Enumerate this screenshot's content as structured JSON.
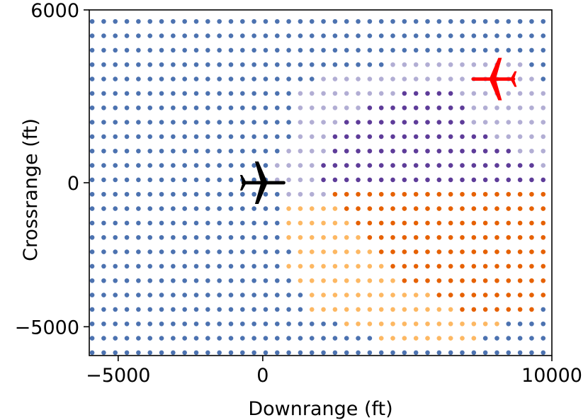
{
  "chart_data": {
    "type": "scatter",
    "title": "",
    "xlabel": "Downrange (ft)",
    "ylabel": "Crossrange (ft)",
    "xlim": [
      -6000,
      10000
    ],
    "ylim": [
      -6000,
      6000
    ],
    "xticks": [
      {
        "value": -5000,
        "label": "−5000"
      },
      {
        "value": 0,
        "label": "0"
      },
      {
        "value": 10000,
        "label": "10000"
      }
    ],
    "yticks": [
      {
        "value": -5000,
        "label": "−5000"
      },
      {
        "value": 0,
        "label": "0"
      },
      {
        "value": 6000,
        "label": "6000"
      }
    ],
    "grid": false,
    "grid_points": {
      "x_start": -5900,
      "x_step": 400,
      "x_count": 40,
      "y_start": -5900,
      "y_step": 500,
      "y_count": 24
    },
    "class_colors": {
      "blue": "#4c72b0",
      "lavender": "#b2aed4",
      "purple": "#5e3c99",
      "orange": "#e66101",
      "light_orange": "#fdb863"
    },
    "class_map_rows_top_to_bottom": [
      "BBBBBBBBBBBBBBBBBBBBBBBBBBBBBBBBBBBBBBBB",
      "BBBBBBBBBBBBBBBBBBBBBBBBBBBBBBBBBBBBBBBB",
      "BBBBBBBBBBBBBBBBBBBBBBBBBBBBBBBBBBBBBBBB",
      "BBBBBBBBBBBBBBBBBBBBBBBBBBLLLLLLLLLLLLBB",
      "BBBBBBBBBBBBBBBBBBBBLLLLLLLLLLLLLLLLLLLB",
      "BBBBBBBBBBBBBBBBBBLLLLLLLLLPPPPPLLLLLLLL",
      "BBBBBBBBBBBBBBBBBBLLLLLLPPPPPPPPPLLLLLLL",
      "BBBBBBBBBBBBBBBBBBLLLLPPPPPPPPPPPLLLLLLL",
      "BBBBBBBBBBBBBBBBBBLLLPPPPPPPPPPPPPPLLLLL",
      "BBBBBBBBBBBBBBBBBLLLLPPPPPPPPPPPPPPPPLLL",
      "BBBBBBBBBBBBBBBBLLLLPPPPPPPPPPPPPPPPPPPL",
      "BBBBBBBBBBBBBBBBLLLLPPPPPPPPPPPPPPPPPPPP",
      "BBBBBBBBBBBBBBBBBLLLLOOOOOOOOOOOOOOOOOOO",
      "BBBBBBBBBBBBBBBBBYYYYYOOOOOOOOOOOOOOOOOO",
      "BBBBBBBBBBBBBBBBBYYYYYYOOOOOOOOOOOOOOOOO",
      "BBBBBBBBBBBBBBBBBYYYYYYYOOOOOOOOOOOOOOOO",
      "BBBBBBBBBBBBBBBBBBYYYYYYYOOOOOOOOOOOOOOO",
      "BBBBBBBBBBBBBBBBBYYYYYYYYYOOOOOOOOOOOOOO",
      "BBBBBBBBBBBBBBBBBBYYYYYYYYYOOOOOOOOOOOOO",
      "BBBBBBBBBBBBBBBBBBBYYYYYYYYYYYOOOOOOOOOO",
      "BBBBBBBBBBBBBBBBBBBYYYYYYYYYYYYYOOOOOOOB",
      "BBBBBBBBBBBBBBBBBBBBBBYYYYYYYYYYYYYYBBBB",
      "BBBBBBBBBBBBBBBBBBBBBBBBBYYYYYYYYYBBBBBB",
      "BBBBBBBBBBBBBBBBBBBBBBBBBBBBBBBBBBBBBBBB"
    ],
    "ownship": {
      "x": 0,
      "y": 0,
      "color": "#000000",
      "icon": "airplane-icon"
    },
    "intruder": {
      "x": 8000,
      "y": 3600,
      "color": "#ff0000",
      "icon": "airplane-icon"
    }
  }
}
